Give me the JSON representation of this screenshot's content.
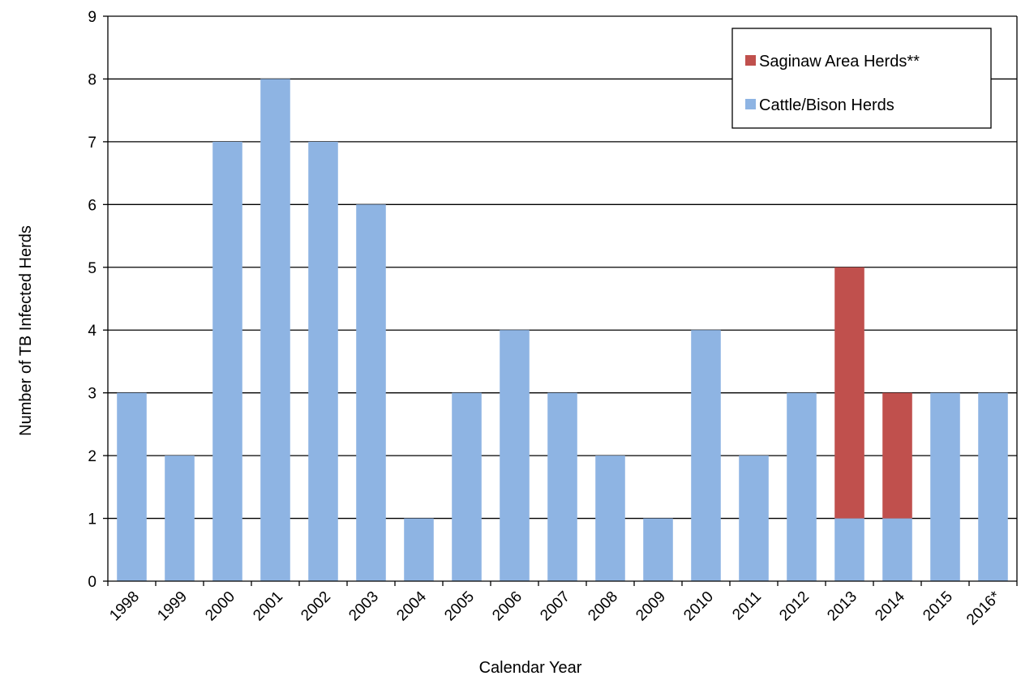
{
  "chart_data": {
    "type": "bar",
    "stacked": true,
    "categories": [
      "1998",
      "1999",
      "2000",
      "2001",
      "2002",
      "2003",
      "2004",
      "2005",
      "2006",
      "2007",
      "2008",
      "2009",
      "2010",
      "2011",
      "2012",
      "2013",
      "2014",
      "2015",
      "2016*"
    ],
    "series": [
      {
        "name": "Cattle/Bison Herds",
        "color": "#8EB4E3",
        "values": [
          3,
          2,
          7,
          8,
          7,
          6,
          1,
          3,
          4,
          3,
          2,
          1,
          4,
          2,
          3,
          1,
          1,
          3,
          3
        ]
      },
      {
        "name": "Saginaw Area Herds**",
        "color": "#C0504D",
        "values": [
          0,
          0,
          0,
          0,
          0,
          0,
          0,
          0,
          0,
          0,
          0,
          0,
          0,
          0,
          0,
          4,
          2,
          0,
          0
        ]
      }
    ],
    "xlabel": "Calendar Year",
    "ylabel": "Number of TB Infected Herds",
    "ylim": [
      0,
      9
    ],
    "yticks": [
      0,
      1,
      2,
      3,
      4,
      5,
      6,
      7,
      8,
      9
    ],
    "grid": true,
    "legend_position": "top-right",
    "legend_order": [
      "Saginaw Area Herds**",
      "Cattle/Bison Herds"
    ]
  }
}
